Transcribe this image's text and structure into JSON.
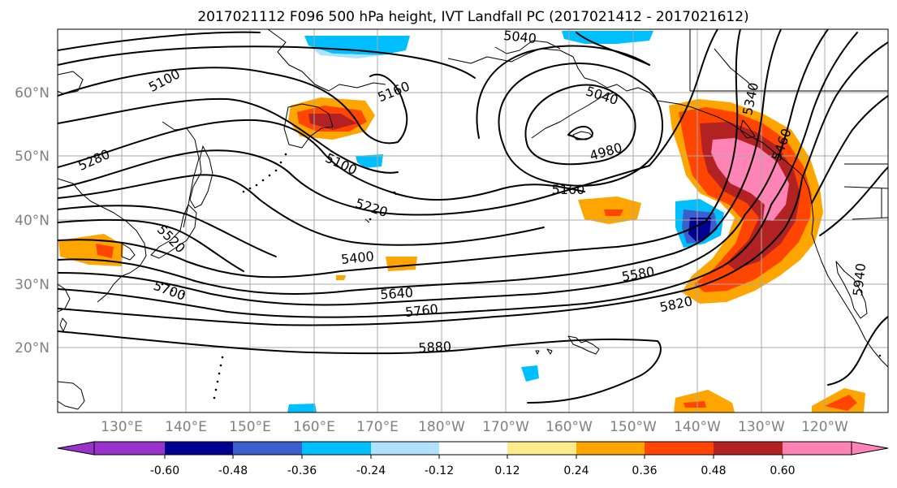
{
  "title": "2017021112 F096 500 hPa height, IVT Landfall PC (2017021412 - 2017021612)",
  "lat_labels": [
    "60°N",
    "50°N",
    "40°N",
    "30°N",
    "20°N"
  ],
  "lon_labels": [
    "130°E",
    "140°E",
    "150°E",
    "160°E",
    "170°E",
    "180°W",
    "170°W",
    "160°W",
    "150°W",
    "140°W",
    "130°W",
    "120°W"
  ],
  "contour_labels": [
    "5100",
    "5160",
    "5040",
    "5040",
    "5280",
    "5100",
    "4980",
    "5160",
    "5220",
    "5520",
    "5400",
    "5340",
    "5460",
    "5700",
    "5640",
    "5580",
    "5760",
    "5820",
    "5880",
    "5940"
  ],
  "colorbar": {
    "colors": [
      "#9933cc",
      "#000090",
      "#3a5fcd",
      "#00bfff",
      "#b0e2ff",
      "#ffffff",
      "#ffeb8a",
      "#ffa500",
      "#ff4500",
      "#b22222",
      "#ff83b4"
    ],
    "tick_labels": [
      "-0.60",
      "-0.48",
      "-0.36",
      "-0.24",
      "-0.12",
      "0.12",
      "0.24",
      "0.36",
      "0.48",
      "0.60"
    ]
  }
}
